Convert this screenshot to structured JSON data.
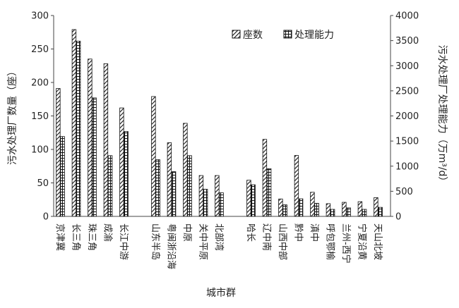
{
  "chart_data": {
    "type": "bar",
    "xlabel": "城市群",
    "ylabel": "污水处理厂数量（座）",
    "y2label": "污水处理厂处理能力（万m³/d）",
    "ylim": [
      0,
      300
    ],
    "y2lim": [
      0,
      4000
    ],
    "yticks": [
      0,
      50,
      100,
      150,
      200,
      250,
      300
    ],
    "y2ticks": [
      0,
      500,
      1000,
      1500,
      2000,
      2500,
      3000,
      3500,
      4000
    ],
    "legend_position": "top-right",
    "categories": [
      "京津冀",
      "长三角",
      "珠三角",
      "成渝",
      "长江中游",
      "山东半岛",
      "粤闽浙沿海",
      "中原",
      "关中平原",
      "北部湾",
      "哈长",
      "辽中南",
      "山西中部",
      "黔中",
      "滇中",
      "呼包鄂榆",
      "兰州-西宁",
      "宁夏沿黄",
      "天山北坡"
    ],
    "groups": [
      5,
      5,
      9
    ],
    "series": [
      {
        "name": "座数",
        "axis": "left",
        "pattern": "diagonal-hatch",
        "values": [
          191,
          279,
          235,
          228,
          162,
          179,
          110,
          139,
          61,
          61,
          54,
          115,
          26,
          91,
          36,
          19,
          21,
          22,
          28
        ]
      },
      {
        "name": "处理能力",
        "axis": "right",
        "pattern": "grid-hatch",
        "values": [
          1590,
          3490,
          2360,
          1210,
          1690,
          1130,
          890,
          1210,
          540,
          470,
          630,
          950,
          230,
          350,
          260,
          140,
          170,
          140,
          180
        ]
      }
    ]
  }
}
